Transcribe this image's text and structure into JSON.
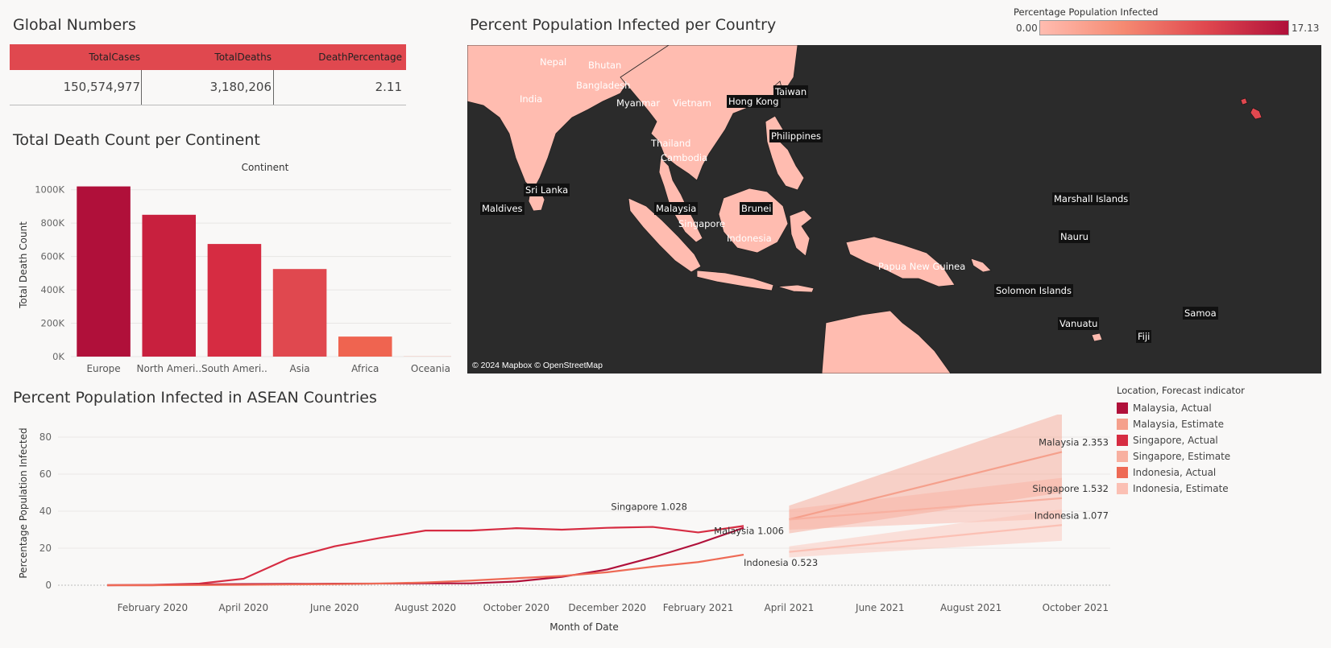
{
  "global_numbers": {
    "title": "Global Numbers",
    "headers": [
      "TotalCases",
      "TotalDeaths",
      "DeathPercentage"
    ],
    "values": [
      "150,574,977",
      "3,180,206",
      "2.11"
    ],
    "header_color": "#e0484f"
  },
  "bar_panel": {
    "title": "Total Death Count per Continent"
  },
  "map_panel": {
    "title": "Percent Population Infected per Country",
    "legend_title": "Percentage Population Infected",
    "legend_min": "0.00",
    "legend_max": "17.13",
    "credit": "© 2024 Mapbox © OpenStreetMap",
    "labels": [
      {
        "text": "India",
        "boxed": false
      },
      {
        "text": "Bangladesh",
        "boxed": false
      },
      {
        "text": "Myanmar",
        "boxed": false
      },
      {
        "text": "Vietnam",
        "boxed": false
      },
      {
        "text": "Hong Kong",
        "boxed": true
      },
      {
        "text": "Taiwan",
        "boxed": true
      },
      {
        "text": "Philippines",
        "boxed": true
      },
      {
        "text": "Thailand",
        "boxed": false
      },
      {
        "text": "Cambodia",
        "boxed": false
      },
      {
        "text": "Sri Lanka",
        "boxed": true
      },
      {
        "text": "Maldives",
        "boxed": true
      },
      {
        "text": "Malaysia",
        "boxed": true
      },
      {
        "text": "Brunei",
        "boxed": true
      },
      {
        "text": "Singapore",
        "boxed": false
      },
      {
        "text": "Indonesia",
        "boxed": false
      },
      {
        "text": "Papua New Guinea",
        "boxed": false
      },
      {
        "text": "Marshall Islands",
        "boxed": true
      },
      {
        "text": "Nauru",
        "boxed": true
      },
      {
        "text": "Solomon Islands",
        "boxed": true
      },
      {
        "text": "Samoa",
        "boxed": true
      },
      {
        "text": "Vanuatu",
        "boxed": true
      },
      {
        "text": "Fiji",
        "boxed": true
      },
      {
        "text": "Nepal",
        "boxed": false
      },
      {
        "text": "Bhutan",
        "boxed": false
      }
    ]
  },
  "line_panel": {
    "title": "Percent Population Infected in ASEAN Countries",
    "legend_title": "Location, Forecast indicator",
    "legend_items": [
      {
        "label": "Malaysia, Actual",
        "color": "#b0103a"
      },
      {
        "label": "Malaysia, Estimate",
        "color": "#f5a08c"
      },
      {
        "label": "Singapore, Actual",
        "color": "#d62c42"
      },
      {
        "label": "Singapore, Estimate",
        "color": "#f8b0a0"
      },
      {
        "label": "Indonesia, Actual",
        "color": "#ee6a55"
      },
      {
        "label": "Indonesia, Estimate",
        "color": "#fbc0b4"
      }
    ]
  },
  "chart_data": [
    {
      "type": "bar",
      "title": "",
      "header": "Continent",
      "ylabel": "Total Death Count",
      "categories": [
        "Europe",
        "North Ameri..",
        "South Ameri..",
        "Asia",
        "Africa",
        "Oceania"
      ],
      "values": [
        1020000,
        850000,
        675000,
        525000,
        120000,
        1000
      ],
      "colors": [
        "#b0103a",
        "#c8203e",
        "#d62c42",
        "#e0484f",
        "#ef6450",
        "#f58a72"
      ],
      "ylim": [
        0,
        1100000
      ],
      "yticks": [
        0,
        200000,
        400000,
        600000,
        800000,
        1000000
      ],
      "ytick_labels": [
        "0K",
        "200K",
        "400K",
        "600K",
        "800K",
        "1000K"
      ]
    },
    {
      "type": "line",
      "xlabel": "Month of Date",
      "ylabel": "Percentage Population Infected",
      "ylim": [
        0,
        90
      ],
      "yticks": [
        0,
        20,
        40,
        60,
        80
      ],
      "xlim": [
        "2020-01",
        "2021-10"
      ],
      "xtick_labels": [
        "February 2020",
        "April 2020",
        "June 2020",
        "August 2020",
        "October 2020",
        "December 2020",
        "February 2021",
        "April 2021",
        "June 2021",
        "August 2021",
        "October 2021"
      ],
      "xtick_months": [
        "2020-02",
        "2020-04",
        "2020-06",
        "2020-08",
        "2020-10",
        "2020-12",
        "2021-02",
        "2021-04",
        "2021-06",
        "2021-08",
        "2021-10"
      ],
      "series": [
        {
          "name": "Singapore, Actual",
          "color": "#d62c42",
          "x": [
            "2020-01",
            "2020-02",
            "2020-03",
            "2020-04",
            "2020-05",
            "2020-06",
            "2020-07",
            "2020-08",
            "2020-09",
            "2020-10",
            "2020-11",
            "2020-12",
            "2021-01",
            "2021-02",
            "2021-03"
          ],
          "y": [
            0,
            0.2,
            0.8,
            3.5,
            14.5,
            21,
            25.5,
            29.5,
            29.5,
            30.8,
            30,
            31,
            31.5,
            28.5,
            32
          ],
          "label": "Singapore 1.028"
        },
        {
          "name": "Malaysia, Actual",
          "color": "#b0103a",
          "x": [
            "2020-01",
            "2020-02",
            "2020-03",
            "2020-04",
            "2020-05",
            "2020-06",
            "2020-07",
            "2020-08",
            "2020-09",
            "2020-10",
            "2020-11",
            "2020-12",
            "2021-01",
            "2021-02",
            "2021-03"
          ],
          "y": [
            0,
            0,
            0.4,
            0.6,
            0.7,
            0.8,
            0.9,
            1,
            1,
            2,
            4.5,
            8.5,
            15,
            22.5,
            31
          ],
          "label": "Malaysia 1.006"
        },
        {
          "name": "Indonesia, Actual",
          "color": "#ee6a55",
          "x": [
            "2020-01",
            "2020-02",
            "2020-03",
            "2020-04",
            "2020-05",
            "2020-06",
            "2020-07",
            "2020-08",
            "2020-09",
            "2020-10",
            "2020-11",
            "2020-12",
            "2021-01",
            "2021-02",
            "2021-03"
          ],
          "y": [
            0,
            0,
            0.1,
            0.2,
            0.4,
            0.6,
            0.9,
            1.5,
            2.5,
            3.8,
            5,
            7,
            10,
            12.5,
            16.5
          ],
          "label": "Indonesia 0.523"
        },
        {
          "name": "Malaysia, Estimate",
          "color": "#f5a08c",
          "x": [
            "2021-04",
            "2021-10"
          ],
          "y": [
            35.5,
            72
          ],
          "band_low": [
            28,
            50
          ],
          "band_high": [
            43,
            93
          ],
          "label": "Malaysia 2.353"
        },
        {
          "name": "Singapore, Estimate",
          "color": "#f8b0a0",
          "x": [
            "2021-04",
            "2021-10"
          ],
          "y": [
            35.5,
            47
          ],
          "band_low": [
            30,
            36
          ],
          "band_high": [
            41,
            58
          ],
          "label": "Singapore 1.532"
        },
        {
          "name": "Indonesia, Estimate",
          "color": "#fbc0b4",
          "x": [
            "2021-04",
            "2021-10"
          ],
          "y": [
            18,
            32.5
          ],
          "band_low": [
            15,
            24
          ],
          "band_high": [
            21,
            41
          ],
          "label": "Indonesia 1.077"
        }
      ]
    }
  ]
}
